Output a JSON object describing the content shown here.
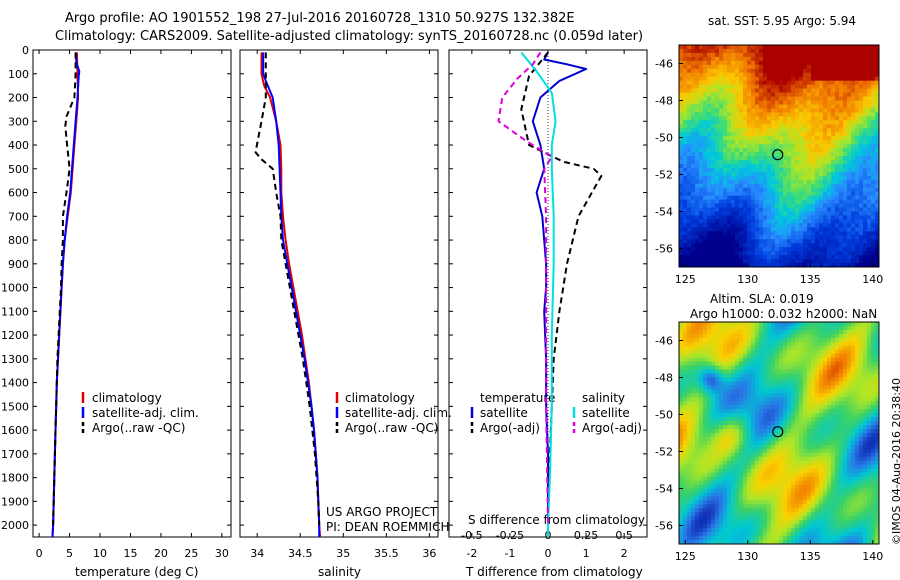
{
  "header": {
    "line1": "Argo profile: AO 1901552_198 27-Jul-2016 20160728_1310 50.927S 132.382E",
    "line2": "Climatology: CARS2009. Satellite-adjusted climatology: synTS_20160728.nc (0.059d later)"
  },
  "depth_ticks": [
    "0",
    "100",
    "200",
    "300",
    "400",
    "500",
    "600",
    "700",
    "800",
    "900",
    "1000",
    "1100",
    "1200",
    "1300",
    "1400",
    "1500",
    "1600",
    "1700",
    "1800",
    "1900",
    "2000"
  ],
  "chart_data": [
    {
      "type": "line",
      "xlabel": "temperature (deg C)",
      "xticks": [
        "0",
        "5",
        "10",
        "15",
        "20",
        "25",
        "30"
      ],
      "xlim": [
        -1,
        31.5
      ],
      "ylim": [
        0,
        2050
      ],
      "legend": [
        "climatology",
        "satellite-adj. clim.",
        "Argo(..raw -QC)"
      ],
      "series": [
        {
          "name": "climatology",
          "color": "#e00000",
          "dash": false,
          "points": [
            [
              6.2,
              10
            ],
            [
              6.3,
              100
            ],
            [
              6.4,
              200
            ],
            [
              6.1,
              300
            ],
            [
              5.8,
              400
            ],
            [
              5.5,
              500
            ],
            [
              5.2,
              600
            ],
            [
              4.7,
              700
            ],
            [
              4.2,
              800
            ],
            [
              3.9,
              900
            ],
            [
              3.7,
              1000
            ],
            [
              3.5,
              1100
            ],
            [
              3.3,
              1200
            ],
            [
              3.1,
              1300
            ],
            [
              2.9,
              1400
            ],
            [
              2.8,
              1500
            ],
            [
              2.7,
              1600
            ],
            [
              2.6,
              1700
            ],
            [
              2.5,
              1800
            ],
            [
              2.4,
              1900
            ],
            [
              2.3,
              2000
            ],
            [
              2.2,
              2050
            ]
          ]
        },
        {
          "name": "satellite-adj. clim.",
          "color": "#0000ff",
          "dash": false,
          "points": [
            [
              6.0,
              10
            ],
            [
              6.1,
              50
            ],
            [
              6.6,
              90
            ],
            [
              6.5,
              110
            ],
            [
              6.3,
              200
            ],
            [
              6.0,
              300
            ],
            [
              5.7,
              400
            ],
            [
              5.4,
              500
            ],
            [
              5.1,
              600
            ],
            [
              4.6,
              700
            ],
            [
              4.2,
              800
            ],
            [
              3.9,
              900
            ],
            [
              3.7,
              1000
            ],
            [
              3.5,
              1100
            ],
            [
              3.3,
              1200
            ],
            [
              3.1,
              1300
            ],
            [
              2.9,
              1400
            ],
            [
              2.8,
              1500
            ],
            [
              2.7,
              1600
            ],
            [
              2.6,
              1700
            ],
            [
              2.5,
              1800
            ],
            [
              2.4,
              1900
            ],
            [
              2.3,
              2000
            ],
            [
              2.2,
              2050
            ]
          ]
        },
        {
          "name": "Argo(..raw -QC)",
          "color": "#000000",
          "dash": true,
          "points": [
            [
              6.0,
              10
            ],
            [
              6.0,
              100
            ],
            [
              5.8,
              200
            ],
            [
              4.5,
              280
            ],
            [
              4.3,
              320
            ],
            [
              4.6,
              400
            ],
            [
              5.0,
              500
            ],
            [
              4.5,
              600
            ],
            [
              3.9,
              700
            ],
            [
              3.9,
              800
            ],
            [
              3.7,
              900
            ],
            [
              3.6,
              1000
            ],
            [
              3.4,
              1100
            ],
            [
              3.2,
              1200
            ],
            [
              3.0,
              1300
            ],
            [
              2.9,
              1400
            ],
            [
              2.8,
              1500
            ],
            [
              2.7,
              1600
            ],
            [
              2.6,
              1700
            ],
            [
              2.5,
              1800
            ],
            [
              2.4,
              1900
            ],
            [
              2.3,
              2000
            ]
          ]
        }
      ]
    },
    {
      "type": "line",
      "xlabel": "salinity",
      "xticks": [
        "34",
        "34.5",
        "35",
        "35.5",
        "36"
      ],
      "xlim": [
        33.8,
        36.1
      ],
      "ylim": [
        0,
        2050
      ],
      "legend": [
        "climatology",
        "satellite-adj. clim.",
        "Argo(..raw -QC)"
      ],
      "annotation": [
        "US ARGO PROJECT",
        "PI: DEAN ROEMMICH"
      ],
      "series": [
        {
          "name": "climatology",
          "color": "#e00000",
          "dash": false,
          "points": [
            [
              34.05,
              10
            ],
            [
              34.05,
              100
            ],
            [
              34.08,
              150
            ],
            [
              34.15,
              200
            ],
            [
              34.22,
              300
            ],
            [
              34.27,
              400
            ],
            [
              34.28,
              500
            ],
            [
              34.28,
              600
            ],
            [
              34.3,
              700
            ],
            [
              34.33,
              800
            ],
            [
              34.37,
              900
            ],
            [
              34.42,
              1000
            ],
            [
              34.47,
              1100
            ],
            [
              34.52,
              1200
            ],
            [
              34.56,
              1300
            ],
            [
              34.6,
              1400
            ],
            [
              34.63,
              1500
            ],
            [
              34.66,
              1600
            ],
            [
              34.68,
              1700
            ],
            [
              34.7,
              1800
            ],
            [
              34.71,
              1900
            ],
            [
              34.72,
              2000
            ],
            [
              34.73,
              2050
            ]
          ]
        },
        {
          "name": "satellite-adj. clim.",
          "color": "#0000ff",
          "dash": false,
          "points": [
            [
              34.07,
              10
            ],
            [
              34.07,
              100
            ],
            [
              34.1,
              130
            ],
            [
              34.18,
              200
            ],
            [
              34.22,
              300
            ],
            [
              34.25,
              400
            ],
            [
              34.26,
              500
            ],
            [
              34.27,
              600
            ],
            [
              34.28,
              700
            ],
            [
              34.3,
              800
            ],
            [
              34.35,
              900
            ],
            [
              34.4,
              1000
            ],
            [
              34.45,
              1100
            ],
            [
              34.5,
              1200
            ],
            [
              34.55,
              1300
            ],
            [
              34.59,
              1400
            ],
            [
              34.63,
              1500
            ],
            [
              34.66,
              1600
            ],
            [
              34.68,
              1700
            ],
            [
              34.7,
              1800
            ],
            [
              34.71,
              1900
            ],
            [
              34.72,
              2000
            ],
            [
              34.72,
              2050
            ]
          ]
        },
        {
          "name": "Argo(..raw -QC)",
          "color": "#000000",
          "dash": true,
          "points": [
            [
              34.1,
              10
            ],
            [
              34.1,
              100
            ],
            [
              34.1,
              200
            ],
            [
              34.05,
              300
            ],
            [
              33.98,
              430
            ],
            [
              34.05,
              460
            ],
            [
              34.18,
              500
            ],
            [
              34.22,
              600
            ],
            [
              34.27,
              700
            ],
            [
              34.28,
              800
            ],
            [
              34.33,
              900
            ],
            [
              34.38,
              1000
            ],
            [
              34.43,
              1100
            ],
            [
              34.48,
              1200
            ],
            [
              34.53,
              1300
            ],
            [
              34.57,
              1400
            ],
            [
              34.61,
              1500
            ],
            [
              34.64,
              1600
            ],
            [
              34.67,
              1700
            ],
            [
              34.69,
              1800
            ],
            [
              34.71,
              1900
            ],
            [
              34.72,
              2000
            ]
          ]
        }
      ]
    },
    {
      "type": "line",
      "xlabel": "T difference from climatology",
      "xlabel_top": "S difference from climatology",
      "xticks_top": [
        "-0.5",
        "-0.25",
        "0",
        "0.25",
        "0.5"
      ],
      "xticks_bottom": [
        "-2",
        "-1",
        "0",
        "1",
        "2"
      ],
      "xlim": [
        -2.6,
        2.6
      ],
      "ylim": [
        0,
        2050
      ],
      "legend_headers": [
        "temperature",
        "salinity"
      ],
      "legend": [
        "satellite",
        "Argo(-adj)",
        "satellite",
        "Argo(-adj)"
      ],
      "series": [
        {
          "name": "satellite",
          "color": "#0000cc",
          "dash": false,
          "points": [
            [
              0,
              10
            ],
            [
              -0.1,
              40
            ],
            [
              0.5,
              60
            ],
            [
              1.0,
              80
            ],
            [
              0.3,
              130
            ],
            [
              -0.2,
              200
            ],
            [
              -0.4,
              300
            ],
            [
              -0.2,
              400
            ],
            [
              -0.1,
              500
            ],
            [
              -0.3,
              600
            ],
            [
              -0.15,
              700
            ],
            [
              -0.1,
              800
            ],
            [
              -0.05,
              900
            ],
            [
              -0.05,
              1000
            ],
            [
              -0.1,
              1100
            ],
            [
              -0.05,
              1300
            ],
            [
              -0.05,
              1500
            ],
            [
              0.0,
              1700
            ],
            [
              0.0,
              2000
            ]
          ]
        },
        {
          "name": "Argo(-adj)",
          "color": "#000000",
          "dash": true,
          "points": [
            [
              0,
              10
            ],
            [
              -0.2,
              50
            ],
            [
              -0.5,
              110
            ],
            [
              -0.7,
              250
            ],
            [
              -0.5,
              400
            ],
            [
              0.4,
              470
            ],
            [
              1.2,
              500
            ],
            [
              1.4,
              530
            ],
            [
              0.8,
              700
            ],
            [
              0.5,
              900
            ],
            [
              0.3,
              1100
            ],
            [
              0.15,
              1300
            ],
            [
              0.1,
              1500
            ],
            [
              0.05,
              1700
            ],
            [
              0.0,
              2000
            ]
          ]
        },
        {
          "name": "satellite",
          "color": "#00e0e0",
          "dash": false,
          "points": [
            [
              -0.7,
              10
            ],
            [
              -0.5,
              50
            ],
            [
              -0.3,
              90
            ],
            [
              0.1,
              180
            ],
            [
              0.2,
              300
            ],
            [
              0.1,
              400
            ],
            [
              0.1,
              500
            ],
            [
              0.15,
              700
            ],
            [
              0.15,
              900
            ],
            [
              0.1,
              1200
            ],
            [
              0.1,
              1500
            ],
            [
              0.05,
              1800
            ],
            [
              0.0,
              2000
            ],
            [
              0.0,
              2050
            ]
          ]
        },
        {
          "name": "Argo(-adj)",
          "color": "#dd00dd",
          "dash": true,
          "points": [
            [
              -0.2,
              10
            ],
            [
              -0.4,
              60
            ],
            [
              -0.8,
              120
            ],
            [
              -1.2,
              200
            ],
            [
              -1.3,
              300
            ],
            [
              -0.6,
              380
            ],
            [
              -0.2,
              420
            ],
            [
              0.1,
              450
            ],
            [
              -0.1,
              500
            ],
            [
              -0.05,
              700
            ],
            [
              -0.05,
              1000
            ],
            [
              -0.05,
              1500
            ],
            [
              0.0,
              2000
            ]
          ]
        }
      ]
    },
    {
      "type": "heatmap",
      "title": "sat. SST: 5.95 Argo: 5.94",
      "xticks": [
        "125",
        "130",
        "135",
        "140"
      ],
      "yticks": [
        "-46",
        "-48",
        "-50",
        "-52",
        "-54",
        "-56"
      ],
      "xlim": [
        124.5,
        140.5
      ],
      "ylim": [
        -57,
        -45
      ],
      "marker": [
        132.4,
        -50.93
      ]
    },
    {
      "type": "heatmap",
      "title": [
        "Altim. SLA: 0.019",
        "Argo h1000: 0.032 h2000: NaN"
      ],
      "side_label": "©IMOS 04-Aug-2016 20:38:40",
      "xticks": [
        "125",
        "130",
        "135",
        "140"
      ],
      "yticks": [
        "-46",
        "-48",
        "-50",
        "-52",
        "-54",
        "-56"
      ],
      "xlim": [
        124.5,
        140.5
      ],
      "ylim": [
        -57,
        -45
      ],
      "marker": [
        132.4,
        -50.93
      ]
    }
  ]
}
